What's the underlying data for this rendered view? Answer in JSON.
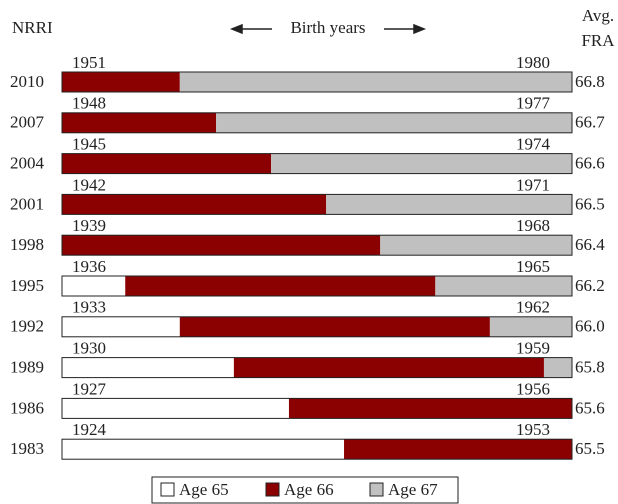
{
  "chart_data": {
    "type": "stacked-bar-horizontal",
    "row_axis_title": "NRRI",
    "center_title": "Birth years",
    "right_title": [
      "Avg.",
      "FRA"
    ],
    "categories": [
      "2010",
      "2007",
      "2004",
      "2001",
      "1998",
      "1995",
      "1992",
      "1989",
      "1986",
      "1983"
    ],
    "start_years": [
      1951,
      1948,
      1945,
      1942,
      1939,
      1936,
      1933,
      1930,
      1927,
      1924
    ],
    "end_years": [
      1980,
      1977,
      1974,
      1971,
      1968,
      1965,
      1962,
      1959,
      1956,
      1953
    ],
    "fra_values": [
      66.8,
      66.7,
      66.6,
      66.5,
      66.4,
      66.2,
      66.0,
      65.8,
      65.6,
      65.5
    ],
    "fra_value_labels": [
      "66.8",
      "66.7",
      "66.6",
      "66.5",
      "66.4",
      "66.2",
      "66.0",
      "65.8",
      "65.6",
      "65.5"
    ],
    "xlim": [
      0,
      100
    ],
    "series": [
      {
        "name": "Age 65",
        "color": "#ffffff",
        "values": [
          0,
          0,
          0,
          0,
          0,
          12.4,
          23.1,
          33.7,
          44.5,
          55.3
        ]
      },
      {
        "name": "Age 66",
        "color": "#8b0000",
        "values": [
          23.1,
          30.2,
          41,
          51.8,
          62.4,
          60.8,
          60.8,
          60.8,
          55.5,
          44.7
        ]
      },
      {
        "name": "Age 67",
        "color": "#c0c0c0",
        "values": [
          76.9,
          69.8,
          59,
          48.2,
          37.6,
          26.9,
          16.1,
          5.5,
          0,
          0
        ]
      }
    ]
  }
}
